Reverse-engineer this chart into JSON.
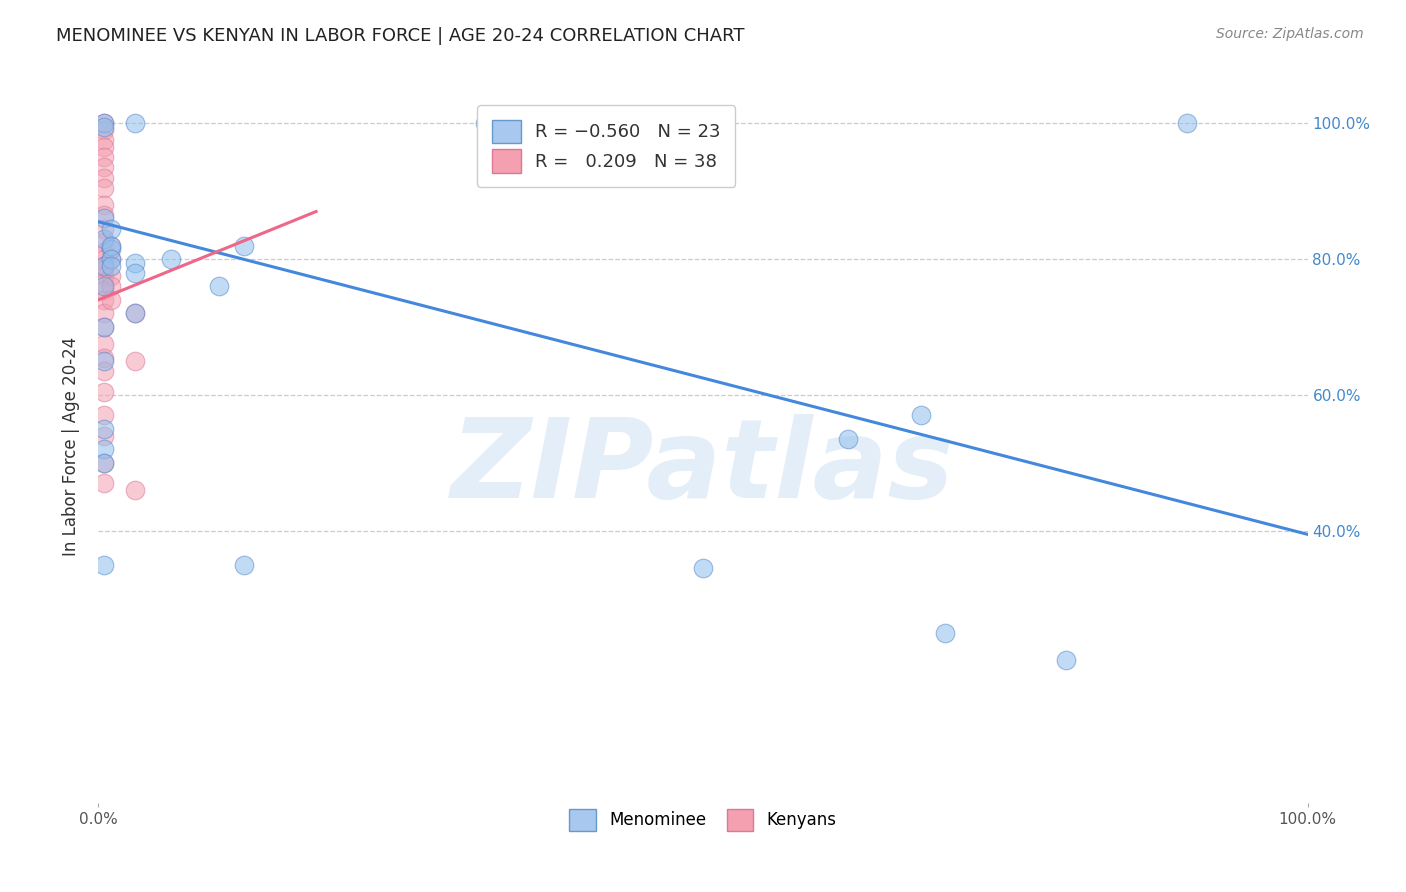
{
  "title": "MENOMINEE VS KENYAN IN LABOR FORCE | AGE 20-24 CORRELATION CHART",
  "source": "Source: ZipAtlas.com",
  "ylabel": "In Labor Force | Age 20-24",
  "xlim": [
    0.0,
    1.0
  ],
  "ylim": [
    0.0,
    1.05
  ],
  "xtick_positions": [
    0.0,
    1.0
  ],
  "xtick_labels": [
    "0.0%",
    "100.0%"
  ],
  "ytick_positions": [
    0.4,
    0.6,
    0.8,
    1.0
  ],
  "ytick_labels": [
    "40.0%",
    "60.0%",
    "80.0%",
    "100.0%"
  ],
  "legend_color1": "#A8C8F0",
  "legend_color2": "#F4A0B0",
  "legend_edge1": "#6699CC",
  "legend_edge2": "#DD7799",
  "watermark_text": "ZIPatlas",
  "blue_color": "#90BFEE",
  "pink_color": "#F4A0B0",
  "blue_edge": "#5588CC",
  "pink_edge": "#DD7799",
  "blue_line_color": "#4488DD",
  "pink_line_color": "#EE6688",
  "blue_scatter": [
    [
      0.005,
      1.0
    ],
    [
      0.005,
      0.995
    ],
    [
      0.03,
      1.0
    ],
    [
      0.005,
      0.86
    ],
    [
      0.005,
      0.83
    ],
    [
      0.005,
      0.79
    ],
    [
      0.005,
      0.76
    ],
    [
      0.01,
      0.845
    ],
    [
      0.01,
      0.815
    ],
    [
      0.01,
      0.82
    ],
    [
      0.01,
      0.8
    ],
    [
      0.01,
      0.79
    ],
    [
      0.005,
      0.7
    ],
    [
      0.005,
      0.65
    ],
    [
      0.005,
      0.55
    ],
    [
      0.005,
      0.52
    ],
    [
      0.005,
      0.5
    ],
    [
      0.03,
      0.795
    ],
    [
      0.03,
      0.78
    ],
    [
      0.03,
      0.72
    ],
    [
      0.06,
      0.8
    ],
    [
      0.12,
      0.82
    ],
    [
      0.1,
      0.76
    ],
    [
      0.32,
      1.0
    ],
    [
      0.005,
      0.35
    ],
    [
      0.12,
      0.35
    ],
    [
      0.5,
      0.345
    ],
    [
      0.62,
      0.535
    ],
    [
      0.68,
      0.57
    ],
    [
      0.7,
      0.25
    ],
    [
      0.8,
      0.21
    ],
    [
      0.9,
      1.0
    ]
  ],
  "pink_scatter": [
    [
      0.005,
      1.0
    ],
    [
      0.005,
      0.99
    ],
    [
      0.005,
      0.975
    ],
    [
      0.005,
      0.965
    ],
    [
      0.005,
      0.95
    ],
    [
      0.005,
      0.935
    ],
    [
      0.005,
      0.92
    ],
    [
      0.005,
      0.905
    ],
    [
      0.005,
      0.88
    ],
    [
      0.005,
      0.865
    ],
    [
      0.005,
      0.845
    ],
    [
      0.005,
      0.825
    ],
    [
      0.005,
      0.81
    ],
    [
      0.005,
      0.8
    ],
    [
      0.005,
      0.79
    ],
    [
      0.005,
      0.785
    ],
    [
      0.005,
      0.775
    ],
    [
      0.005,
      0.765
    ],
    [
      0.005,
      0.755
    ],
    [
      0.005,
      0.74
    ],
    [
      0.005,
      0.72
    ],
    [
      0.005,
      0.7
    ],
    [
      0.005,
      0.675
    ],
    [
      0.005,
      0.655
    ],
    [
      0.005,
      0.635
    ],
    [
      0.005,
      0.605
    ],
    [
      0.005,
      0.57
    ],
    [
      0.005,
      0.54
    ],
    [
      0.005,
      0.5
    ],
    [
      0.005,
      0.47
    ],
    [
      0.01,
      0.82
    ],
    [
      0.01,
      0.8
    ],
    [
      0.01,
      0.775
    ],
    [
      0.01,
      0.76
    ],
    [
      0.01,
      0.74
    ],
    [
      0.03,
      0.72
    ],
    [
      0.03,
      0.65
    ],
    [
      0.03,
      0.46
    ]
  ],
  "blue_trend_x": [
    0.0,
    1.0
  ],
  "blue_trend_y": [
    0.855,
    0.395
  ],
  "pink_trend_x": [
    0.0,
    0.18
  ],
  "pink_trend_y": [
    0.74,
    0.87
  ],
  "grid_color": "#CCCCCC",
  "background_color": "#FFFFFF"
}
